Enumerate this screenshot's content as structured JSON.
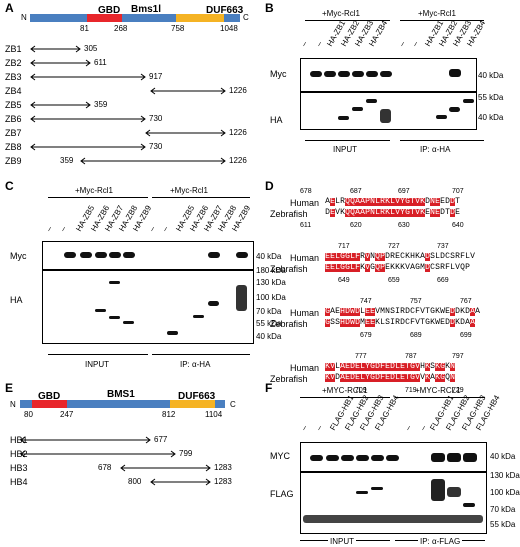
{
  "panels": {
    "A": "A",
    "B": "B",
    "C": "C",
    "D": "D",
    "E": "E",
    "F": "F"
  },
  "panelA": {
    "protein": "Bms1l",
    "n": "N",
    "c": "C",
    "domains": {
      "gbd": "GBD",
      "duf": "DUF663"
    },
    "ticks": [
      "81",
      "268",
      "758",
      "1048"
    ],
    "constructs": [
      {
        "label": "ZB1",
        "start": "",
        "end": "305"
      },
      {
        "label": "ZB2",
        "start": "",
        "end": "611"
      },
      {
        "label": "ZB3",
        "start": "",
        "end": "917"
      },
      {
        "label": "ZB4",
        "start": "",
        "end": "1226"
      },
      {
        "label": "ZB5",
        "start": "",
        "end": "359"
      },
      {
        "label": "ZB6",
        "start": "",
        "end": "730"
      },
      {
        "label": "ZB7",
        "start": "",
        "end": "1226"
      },
      {
        "label": "ZB8",
        "start": "",
        "end": "730"
      },
      {
        "label": "ZB9",
        "start": "359",
        "end": "1226"
      }
    ]
  },
  "panelB": {
    "group1": "+Myc-Rcl1",
    "group2": "+Myc-Rcl1",
    "lanes": [
      "–",
      "–",
      "HA-ZB1",
      "HA-ZB2",
      "HA-ZB3",
      "HA-ZB4",
      "–",
      "–",
      "HA-ZB1",
      "HA-ZB2",
      "HA-ZB3",
      "HA-ZB4"
    ],
    "rows": [
      "Myc",
      "HA"
    ],
    "markers_myc": [
      "40 kDa"
    ],
    "markers_ha": [
      "55 kDa",
      "40 kDa"
    ],
    "bottom": [
      "INPUT",
      "IP: α-HA"
    ]
  },
  "panelC": {
    "group1": "+Myc-Rcl1",
    "group2": "+Myc-Rcl1",
    "lanes": [
      "–",
      "–",
      "HA-ZB5",
      "HA-ZB6",
      "HA-ZB7",
      "HA-ZB8",
      "HA-ZB9",
      "–",
      "–",
      "HA-ZB5",
      "HA-ZB6",
      "HA-ZB7",
      "HA-ZB8",
      "HA-ZB9"
    ],
    "rows": [
      "Myc",
      "HA"
    ],
    "markers_myc": [
      "40 kDa"
    ],
    "markers_ha": [
      "180 kDa",
      "130 kDa",
      "100 kDa",
      "70 kDa",
      "55 kDa",
      "40 kDa"
    ],
    "bottom": [
      "INPUT",
      "IP: α-HA"
    ]
  },
  "panelD": {
    "blocks": [
      {
        "top": [
          "678",
          "687",
          "697",
          "707"
        ],
        "human": "Human",
        "zebra": "Zebrafish",
        "bottom": [
          "611",
          "620",
          "630",
          "640"
        ],
        "h": "AELRQQAAPNLRKLVYGTVKDNEEDDT",
        "z": "DEVKQQAAPNLRKLVYGTVKENEDTDE"
      },
      {
        "top": [
          "717",
          "727",
          "737"
        ],
        "human": "Human",
        "zebra": "Zebrafish",
        "bottom": [
          "649",
          "659",
          "669"
        ],
        "h": "EELGGLFRVNQPDRECKHKADSLDCSRFLV",
        "z": "EELGGLFKVGQPEKKKVAGMDCSRFLVQP"
      },
      {
        "top": [
          "747",
          "757",
          "767"
        ],
        "human": "Human",
        "zebra": "Zebrafish",
        "bottom": [
          "679",
          "689",
          "699"
        ],
        "h": "GAEHDWDLEEVMNSIRDCFVTGKWEDDKDAA",
        "z": "GSSHDWDMEEKLSIRDCFVTGKWEDDKDAA"
      },
      {
        "top": [
          "777",
          "787",
          "797"
        ],
        "human": "Human",
        "zebra": "Zebrafish",
        "bottom": [
          "709",
          "719",
          "729"
        ],
        "h": "KVLAEDELYGDFEDLETGVHKSKGKN",
        "z": "KVDAEDELYGDFEDLETGVVKAKGQN"
      }
    ]
  },
  "panelE": {
    "protein": "BMS1",
    "n": "N",
    "c": "C",
    "domains": {
      "gbd": "GBD",
      "duf": "DUF663"
    },
    "ticks": [
      "80",
      "247",
      "812",
      "1104"
    ],
    "constructs": [
      {
        "label": "HB1",
        "start": "",
        "end": "677"
      },
      {
        "label": "HB2",
        "start": "",
        "end": "799"
      },
      {
        "label": "HB3",
        "start": "678",
        "end": "1283"
      },
      {
        "label": "HB4",
        "start": "800",
        "end": "1283"
      }
    ]
  },
  "panelF": {
    "group1": "+MYC-RCL1",
    "group2": "+MYC-RCL1",
    "lanes": [
      "–",
      "–",
      "FLAG-HB1",
      "FLAG-HB2",
      "FLAG-HB3",
      "FLAG-HB4",
      "–",
      "–",
      "FLAG-HB1",
      "FLAG-HB2",
      "FLAG-HB3",
      "FLAG-HB4"
    ],
    "rows": [
      "MYC",
      "FLAG"
    ],
    "markers_myc": [
      "40 kDa"
    ],
    "markers_flag": [
      "130 kDa",
      "100 kDa",
      "70 kDa",
      "55 kDa"
    ],
    "bottom": [
      "INPUT",
      "IP: α-FLAG"
    ]
  },
  "colors": {
    "gbd": "#e8262b",
    "duf": "#f5b324",
    "backbone": "#4a7fc0",
    "align_red": "#d81f26"
  }
}
